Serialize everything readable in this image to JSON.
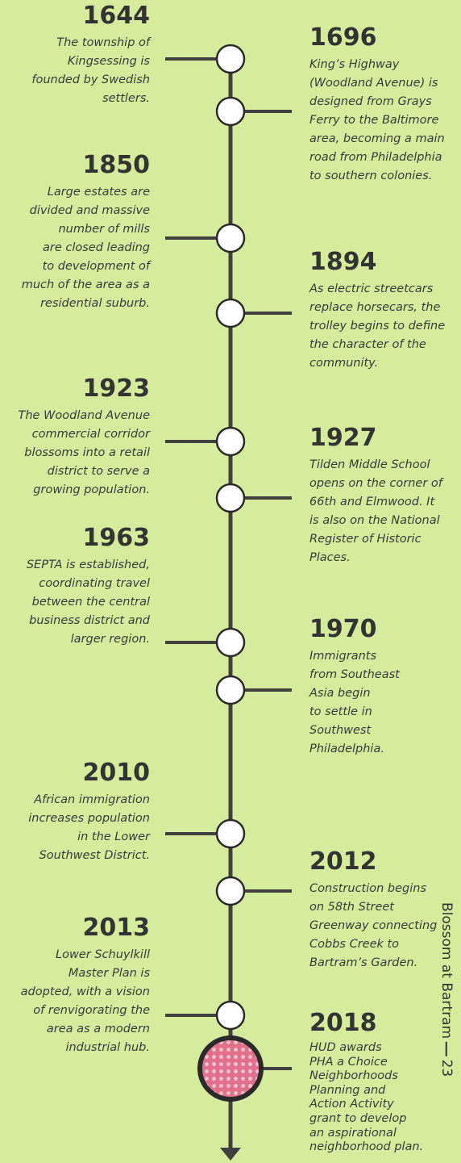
{
  "events": [
    {
      "year": "1644",
      "lines": [
        "The township of",
        "Kingsessing is",
        "founded by Swedish",
        "settlers."
      ]
    },
    {
      "year": "1696",
      "lines": [
        "King’s Highway",
        "(Woodland Avenue) is",
        "designed from Grays",
        "Ferry to the Baltimore",
        "area, becoming a main",
        "road from Philadelphia",
        "to southern colonies."
      ]
    },
    {
      "year": "1850",
      "lines": [
        "Large estates are",
        "divided and massive",
        "number of mills",
        "are closed leading",
        "to development of",
        "much of the area as a",
        "residential suburb."
      ]
    },
    {
      "year": "1894",
      "lines": [
        "As electric streetcars",
        "replace horsecars, the",
        "trolley begins to define",
        "the character of the",
        "community."
      ]
    },
    {
      "year": "1923",
      "lines": [
        "The Woodland Avenue",
        "commercial corridor",
        "blossoms into a retail",
        "district to serve a",
        "growing population."
      ]
    },
    {
      "year": "1927",
      "lines": [
        "Tilden Middle School",
        "opens on the corner of",
        "66th and Elmwood. It",
        "is also on the National",
        "Register of Historic",
        "Places."
      ]
    },
    {
      "year": "1963",
      "lines": [
        "SEPTA is established,",
        "coordinating travel",
        "between the central",
        "business district and",
        "larger region."
      ]
    },
    {
      "year": "1970",
      "lines": [
        "Immigrants",
        "from Southeast",
        "Asia begin",
        "to settle in",
        "Southwest",
        "Philadelphia."
      ]
    },
    {
      "year": "2010",
      "lines": [
        "African immigration",
        "increases population",
        "in the Lower",
        "Southwest District."
      ]
    },
    {
      "year": "2012",
      "lines": [
        "Construction begins",
        "on 58th Street",
        "Greenway connecting",
        "Cobbs Creek to",
        "Bartram’s Garden."
      ]
    },
    {
      "year": "2013",
      "lines": [
        "Lower Schuylkill",
        "Master Plan is",
        "adopted, with a vision",
        "of renvigorating the",
        "area as a modern",
        "industrial hub."
      ]
    },
    {
      "year": "2018",
      "lines": [
        "HUD awards",
        "PHA a Choice",
        "Neighborhoods",
        "Planning and",
        "Action Activity",
        "grant to develop",
        "an aspirational",
        "neighborhood plan."
      ]
    }
  ],
  "sidebar": {
    "title": "Blossom at Bartram",
    "page": "23"
  }
}
